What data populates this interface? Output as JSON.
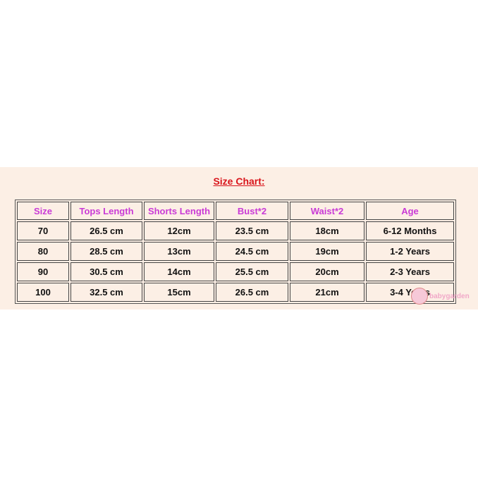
{
  "title": "Size Chart:",
  "headers": [
    "Size",
    "Tops Length",
    "Shorts Length",
    "Bust*2",
    "Waist*2",
    "Age"
  ],
  "rows": [
    [
      "70",
      "26.5 cm",
      "12cm",
      "23.5 cm",
      "18cm",
      "6-12 Months"
    ],
    [
      "80",
      "28.5 cm",
      "13cm",
      "24.5 cm",
      "19cm",
      "1-2 Years"
    ],
    [
      "90",
      "30.5 cm",
      "14cm",
      "25.5 cm",
      "20cm",
      "2-3 Years"
    ],
    [
      "100",
      "32.5 cm",
      "15cm",
      "26.5 cm",
      "21cm",
      "3-4 Years"
    ]
  ],
  "watermark": "babygarden",
  "colors": {
    "title": "#d9141b",
    "header": "#c93ad6",
    "background": "#fcefe5"
  }
}
